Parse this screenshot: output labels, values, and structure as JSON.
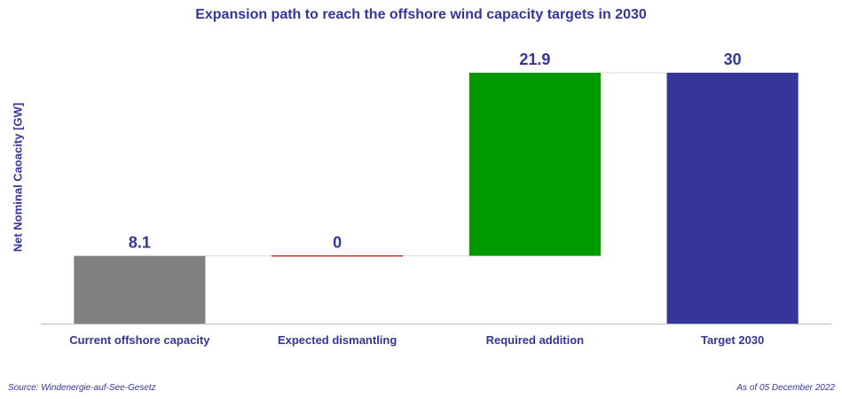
{
  "chart_data": {
    "type": "bar",
    "subtype": "waterfall",
    "title": "Expansion path to reach the offshore wind capacity targets in 2030",
    "ylabel": "Net Nominal Caoacity [GW]",
    "xlabel": "",
    "categories": [
      "Current offshore capacity",
      "Expected dismantling",
      "Required addition",
      "Target 2030"
    ],
    "values": [
      8.1,
      0,
      21.9,
      30
    ],
    "value_labels": [
      "8.1",
      "0",
      "21.9",
      "30"
    ],
    "ylim": [
      0,
      30
    ],
    "grid": false,
    "legend": "none",
    "colors": [
      "#808080",
      "#c00000",
      "#009900",
      "#35359a"
    ]
  },
  "footer": {
    "source": "Source: Windenergie-auf-See-Gesetz",
    "as_of": "As of 05 December 2022"
  },
  "colors": {
    "text": "#35359a",
    "axis": "#bfbfbf",
    "connector": "#d9d9d9"
  }
}
